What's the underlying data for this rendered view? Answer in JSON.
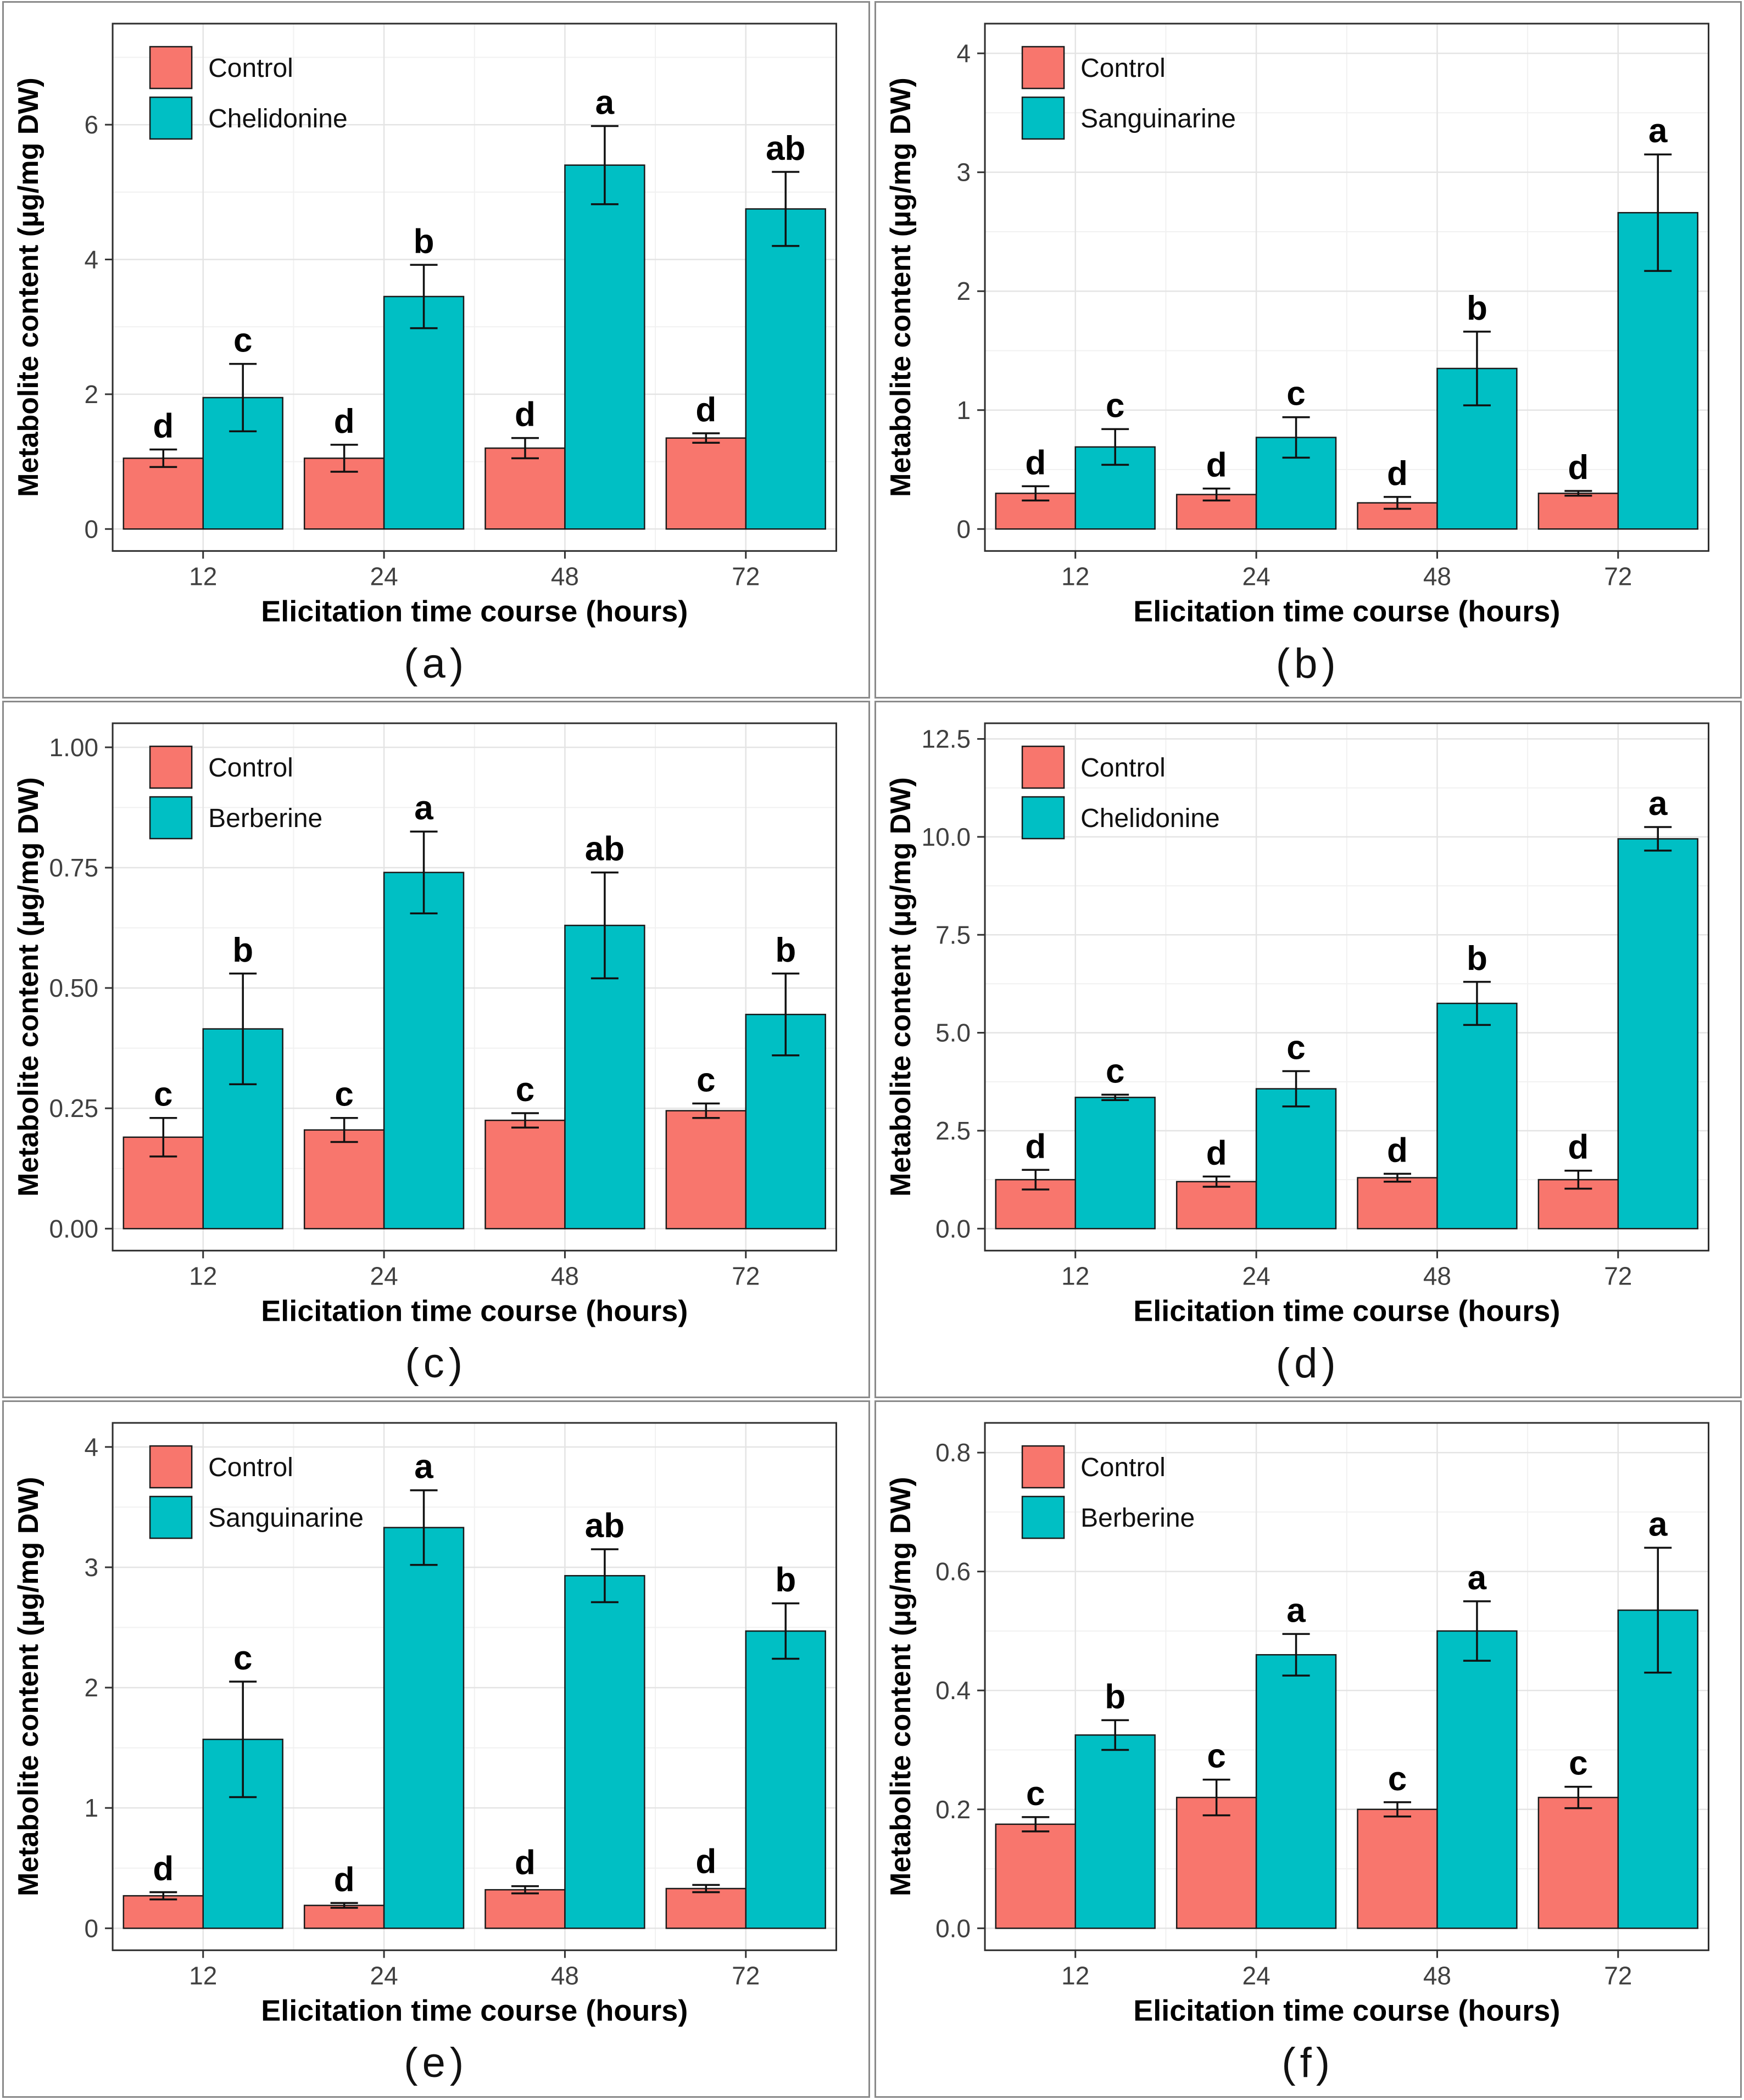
{
  "figure": {
    "xlabel": "Elicitation time course (hours)",
    "ylabel": "Metabolite content (µg/mg DW)",
    "control_color": "#F8766D",
    "treatment_color": "#00BFC4",
    "grid": true,
    "legend_position": "top-left"
  },
  "chart_data": [
    {
      "panel_label": "(a)",
      "type": "bar",
      "xlabel": "Elicitation time course (hours)",
      "ylabel": "Metabolite content (µg/mg DW)",
      "categories": [
        "12",
        "24",
        "48",
        "72"
      ],
      "ylim": [
        0,
        7.5
      ],
      "yticks": [
        0,
        2,
        4,
        6
      ],
      "ytick_labels": [
        "0",
        "2",
        "4",
        "6"
      ],
      "legend_position": "top-left",
      "grid": true,
      "series": [
        {
          "name": "Control",
          "color": "#F8766D",
          "values": [
            1.05,
            1.05,
            1.2,
            1.35
          ],
          "errors": [
            0.13,
            0.2,
            0.15,
            0.07
          ],
          "sig_letters": [
            "d",
            "d",
            "d",
            "d"
          ]
        },
        {
          "name": "Chelidonine",
          "color": "#00BFC4",
          "values": [
            1.95,
            3.45,
            5.4,
            4.75
          ],
          "errors": [
            0.5,
            0.47,
            0.58,
            0.55
          ],
          "sig_letters": [
            "c",
            "b",
            "a",
            "ab"
          ]
        }
      ]
    },
    {
      "panel_label": "(b)",
      "type": "bar",
      "xlabel": "Elicitation time course (hours)",
      "ylabel": "Metabolite content (µg/mg DW)",
      "categories": [
        "12",
        "24",
        "48",
        "72"
      ],
      "ylim": [
        0,
        4.25
      ],
      "yticks": [
        0,
        1,
        2,
        3,
        4
      ],
      "ytick_labels": [
        "0",
        "1",
        "2",
        "3",
        "4"
      ],
      "legend_position": "top-left",
      "grid": true,
      "series": [
        {
          "name": "Control",
          "color": "#F8766D",
          "values": [
            0.3,
            0.29,
            0.22,
            0.3
          ],
          "errors": [
            0.06,
            0.05,
            0.05,
            0.02
          ],
          "sig_letters": [
            "d",
            "d",
            "d",
            "d"
          ]
        },
        {
          "name": "Sanguinarine",
          "color": "#00BFC4",
          "values": [
            0.69,
            0.77,
            1.35,
            2.66
          ],
          "errors": [
            0.15,
            0.17,
            0.31,
            0.49
          ],
          "sig_letters": [
            "c",
            "c",
            "b",
            "a"
          ]
        }
      ]
    },
    {
      "panel_label": "(c)",
      "type": "bar",
      "xlabel": "Elicitation time course (hours)",
      "ylabel": "Metabolite content (µg/mg DW)",
      "categories": [
        "12",
        "24",
        "48",
        "72"
      ],
      "ylim": [
        0,
        1.05
      ],
      "yticks": [
        0,
        0.25,
        0.5,
        0.75,
        1.0
      ],
      "ytick_labels": [
        "0.00",
        "0.25",
        "0.50",
        "0.75",
        "1.00"
      ],
      "legend_position": "top-left",
      "grid": true,
      "series": [
        {
          "name": "Control",
          "color": "#F8766D",
          "values": [
            0.19,
            0.205,
            0.225,
            0.245
          ],
          "errors": [
            0.04,
            0.025,
            0.015,
            0.015
          ],
          "sig_letters": [
            "c",
            "c",
            "c",
            "c"
          ]
        },
        {
          "name": "Berberine",
          "color": "#00BFC4",
          "values": [
            0.415,
            0.74,
            0.63,
            0.445
          ],
          "errors": [
            0.115,
            0.085,
            0.11,
            0.085
          ],
          "sig_letters": [
            "b",
            "a",
            "ab",
            "b"
          ]
        }
      ]
    },
    {
      "panel_label": "(d)",
      "type": "bar",
      "xlabel": "Elicitation time course (hours)",
      "ylabel": "Metabolite content (µg/mg DW)",
      "categories": [
        "12",
        "24",
        "48",
        "72"
      ],
      "ylim": [
        0,
        12.9
      ],
      "yticks": [
        0,
        2.5,
        5,
        7.5,
        10,
        12.5
      ],
      "ytick_labels": [
        "0.0",
        "2.5",
        "5.0",
        "7.5",
        "10.0",
        "12.5"
      ],
      "legend_position": "top-left",
      "grid": true,
      "series": [
        {
          "name": "Control",
          "color": "#F8766D",
          "values": [
            1.25,
            1.2,
            1.3,
            1.25
          ],
          "errors": [
            0.25,
            0.13,
            0.1,
            0.23
          ],
          "sig_letters": [
            "d",
            "d",
            "d",
            "d"
          ]
        },
        {
          "name": "Chelidonine",
          "color": "#00BFC4",
          "values": [
            3.35,
            3.57,
            5.75,
            9.95
          ],
          "errors": [
            0.07,
            0.45,
            0.55,
            0.3
          ],
          "sig_letters": [
            "c",
            "c",
            "b",
            "a"
          ]
        }
      ]
    },
    {
      "panel_label": "(e)",
      "type": "bar",
      "xlabel": "Elicitation time course (hours)",
      "ylabel": "Metabolite content (µg/mg DW)",
      "categories": [
        "12",
        "24",
        "48",
        "72"
      ],
      "ylim": [
        0,
        4.2
      ],
      "yticks": [
        0,
        1,
        2,
        3,
        4
      ],
      "ytick_labels": [
        "0",
        "1",
        "2",
        "3",
        "4"
      ],
      "legend_position": "top-left",
      "grid": true,
      "series": [
        {
          "name": "Control",
          "color": "#F8766D",
          "values": [
            0.27,
            0.19,
            0.32,
            0.33
          ],
          "errors": [
            0.03,
            0.02,
            0.03,
            0.03
          ],
          "sig_letters": [
            "d",
            "d",
            "d",
            "d"
          ]
        },
        {
          "name": "Sanguinarine",
          "color": "#00BFC4",
          "values": [
            1.57,
            3.33,
            2.93,
            2.47
          ],
          "errors": [
            0.48,
            0.31,
            0.22,
            0.23
          ],
          "sig_letters": [
            "c",
            "a",
            "ab",
            "b"
          ]
        }
      ]
    },
    {
      "panel_label": "(f)",
      "type": "bar",
      "xlabel": "Elicitation time course (hours)",
      "ylabel": "Metabolite content (µg/mg DW)",
      "categories": [
        "12",
        "24",
        "48",
        "72"
      ],
      "ylim": [
        0,
        0.85
      ],
      "yticks": [
        0,
        0.2,
        0.4,
        0.6,
        0.8
      ],
      "ytick_labels": [
        "0.0",
        "0.2",
        "0.4",
        "0.6",
        "0.8"
      ],
      "legend_position": "top-left",
      "grid": true,
      "series": [
        {
          "name": "Control",
          "color": "#F8766D",
          "values": [
            0.175,
            0.22,
            0.2,
            0.22
          ],
          "errors": [
            0.012,
            0.03,
            0.012,
            0.018
          ],
          "sig_letters": [
            "c",
            "c",
            "c",
            "c"
          ]
        },
        {
          "name": "Berberine",
          "color": "#00BFC4",
          "values": [
            0.325,
            0.46,
            0.5,
            0.535
          ],
          "errors": [
            0.025,
            0.035,
            0.05,
            0.105
          ],
          "sig_letters": [
            "b",
            "a",
            "a",
            "a"
          ]
        }
      ]
    }
  ]
}
